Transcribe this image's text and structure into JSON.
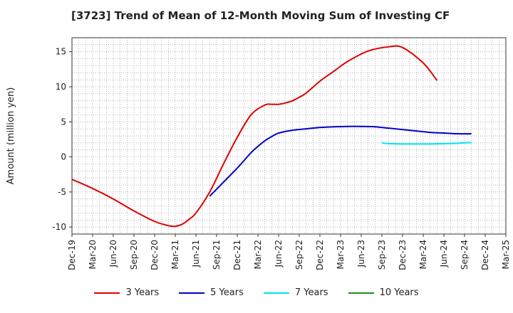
{
  "chart_data": {
    "type": "line",
    "title": "[3723]  Trend of Mean of 12-Month Moving Sum of Investing CF",
    "xlabel": "",
    "ylabel": "Amount (million yen)",
    "ylim": [
      -11,
      17
    ],
    "yticks": [
      15,
      10,
      5,
      0,
      -5,
      -10
    ],
    "xlim_months": [
      0,
      63
    ],
    "xticks": [
      "Dec-19",
      "Mar-20",
      "Jun-20",
      "Sep-20",
      "Dec-20",
      "Mar-21",
      "Jun-21",
      "Sep-21",
      "Dec-21",
      "Mar-22",
      "Jun-22",
      "Sep-22",
      "Dec-22",
      "Mar-23",
      "Jun-23",
      "Sep-23",
      "Dec-23",
      "Mar-24",
      "Jun-24",
      "Sep-24",
      "Dec-24",
      "Mar-25"
    ],
    "grid": true,
    "legend_position": "bottom",
    "series": [
      {
        "name": "3 Years",
        "color": "#dd0000",
        "x": [
          0,
          3,
          6,
          9,
          12,
          14,
          15,
          16,
          17,
          18,
          20,
          22,
          24,
          26,
          28,
          29,
          30,
          31,
          32,
          33,
          34,
          36,
          38,
          40,
          43,
          46,
          48,
          51,
          53,
          54,
          55,
          56,
          57,
          58
        ],
        "y": [
          -3.2,
          -4.5,
          -6.0,
          -7.7,
          -9.2,
          -9.8,
          -9.9,
          -9.6,
          -8.9,
          -8.0,
          -5.0,
          -1.0,
          2.8,
          6.0,
          7.4,
          7.5,
          7.5,
          7.7,
          8.0,
          8.5,
          9.1,
          10.8,
          12.2,
          13.6,
          15.1,
          15.7,
          15.6,
          13.4,
          10.9,
          null,
          null,
          null,
          null,
          null
        ]
      },
      {
        "name": "5 Years",
        "color": "#0000cc",
        "x": [
          20,
          21,
          22,
          23,
          24,
          25,
          26,
          27,
          28,
          29,
          30,
          32,
          34,
          36,
          38,
          40,
          42,
          44,
          46,
          48,
          50,
          52,
          54,
          56,
          58
        ],
        "y": [
          -5.6,
          -4.6,
          -3.6,
          -2.6,
          -1.6,
          -0.5,
          0.6,
          1.5,
          2.3,
          2.9,
          3.4,
          3.8,
          4.0,
          4.2,
          4.3,
          4.35,
          4.35,
          4.3,
          4.1,
          3.9,
          3.7,
          3.5,
          3.4,
          3.3,
          3.3
        ]
      },
      {
        "name": "7 Years",
        "color": "#00e5ee",
        "x": [
          45,
          46,
          48,
          50,
          52,
          54,
          56,
          58
        ],
        "y": [
          2.0,
          1.9,
          1.85,
          1.85,
          1.85,
          1.9,
          1.95,
          2.05
        ]
      },
      {
        "name": "10 Years",
        "color": "#228b22",
        "x": [],
        "y": []
      }
    ]
  }
}
